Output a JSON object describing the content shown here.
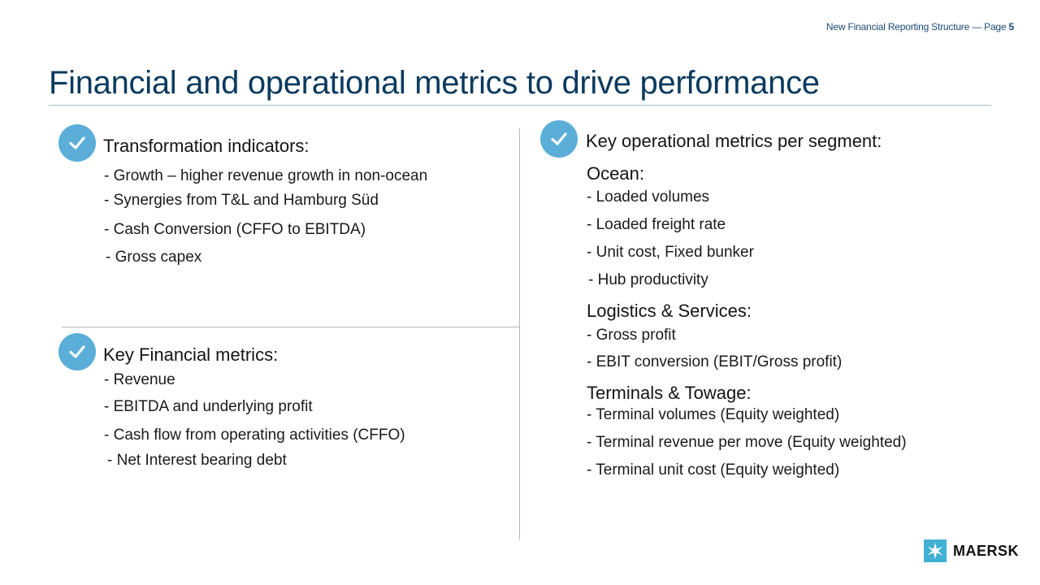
{
  "header": {
    "text": "New Financial Reporting Structure — Page",
    "page_number": "5"
  },
  "title": "Financial and operational metrics to drive performance",
  "left": {
    "transformation": {
      "heading": "Transformation indicators:",
      "items": [
        "- Growth – higher revenue growth in non-ocean",
        "- Synergies from T&L and Hamburg Süd",
        "- Cash Conversion (CFFO to EBITDA)",
        "- Gross capex"
      ]
    },
    "financial": {
      "heading": "Key Financial metrics:",
      "items": [
        "- Revenue",
        "- EBITDA and underlying profit",
        "- Cash flow from operating activities (CFFO)",
        "- Net Interest bearing debt"
      ]
    }
  },
  "right": {
    "heading": "Key operational metrics per segment:",
    "ocean": {
      "title": "Ocean:",
      "items": [
        "- Loaded volumes",
        "- Loaded freight rate",
        "- Unit cost, Fixed bunker",
        "- Hub productivity"
      ]
    },
    "logistics": {
      "title": "Logistics & Services:",
      "items": [
        "- Gross profit",
        "- EBIT conversion (EBIT/Gross profit)"
      ]
    },
    "terminals": {
      "title": "Terminals & Towage:",
      "items": [
        "- Terminal volumes (Equity weighted)",
        "- Terminal revenue per move (Equity weighted)",
        "- Terminal unit cost (Equity weighted)"
      ]
    }
  },
  "logo": {
    "text": "MAERSK",
    "icon": "star-icon"
  },
  "colors": {
    "title": "#0a3a5e",
    "check_circle": "#5aaed8",
    "logo_box": "#42b0d5"
  }
}
